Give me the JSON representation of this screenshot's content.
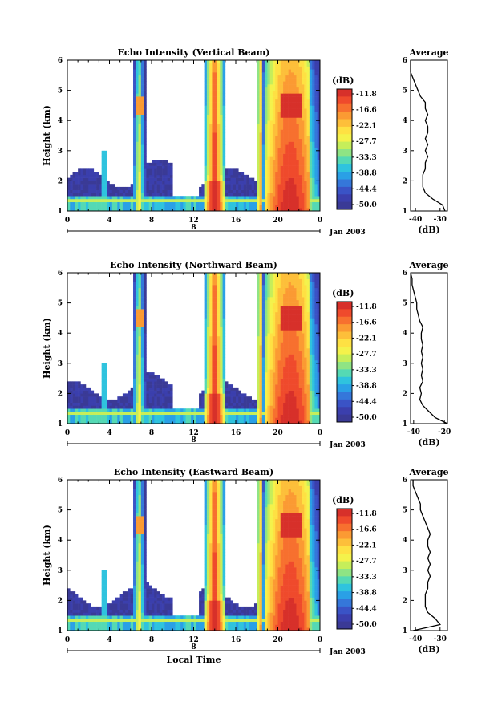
{
  "colorbar": {
    "unit_label": "(dB)",
    "ticks": [
      "-11.8",
      "-16.6",
      "-22.1",
      "-27.7",
      "-33.3",
      "-38.8",
      "-44.4",
      "-50.0"
    ],
    "colors": [
      "#d7302a",
      "#ef4a2c",
      "#f7702f",
      "#fb9a33",
      "#fdbf3a",
      "#fee143",
      "#f4f24b",
      "#c6ee5a",
      "#8fe484",
      "#55d9b4",
      "#2fc3de",
      "#2aa0e6",
      "#3577da",
      "#3a53c6",
      "#3b3fad",
      "#3a3a96"
    ]
  },
  "shared": {
    "date_label": "Jan 2003",
    "day_marker": "8",
    "x_ticks": [
      "0",
      "4",
      "8",
      "12",
      "16",
      "20",
      "0"
    ],
    "y_ticks": [
      "1",
      "2",
      "3",
      "4",
      "5",
      "6"
    ],
    "ylabel": "Height (km)",
    "xlabel": "Local Time",
    "avg_title": "Average",
    "avg_xlabel": "(dB)"
  },
  "chart_data": [
    {
      "type": "heatmap",
      "title": "Echo Intensity (Vertical Beam)",
      "x_range_hours": [
        0,
        24
      ],
      "y_range_km": [
        1,
        6
      ],
      "value_range_db": [
        -50.0,
        -11.8
      ],
      "average_profile": {
        "title": "Average",
        "x_ticks": [
          "-40",
          "-30"
        ],
        "xlim": [
          -42,
          -27
        ],
        "heights_km": [
          1.0,
          1.2,
          1.4,
          1.6,
          1.8,
          2.0,
          2.2,
          2.4,
          2.6,
          2.8,
          3.0,
          3.2,
          3.4,
          3.6,
          3.8,
          4.0,
          4.2,
          4.4,
          4.6,
          4.8,
          5.0,
          5.2,
          5.4,
          5.6,
          5.8,
          6.0
        ],
        "values_db": [
          -28,
          -29,
          -33,
          -36,
          -37,
          -37,
          -37,
          -36,
          -36,
          -35,
          -36,
          -35,
          -36,
          -35,
          -35,
          -36,
          -35,
          -36,
          -36,
          -38,
          -39,
          -40,
          -41,
          -42,
          -42,
          -42
        ]
      }
    },
    {
      "type": "heatmap",
      "title": "Echo Intensity (Northward Beam)",
      "x_range_hours": [
        0,
        24
      ],
      "y_range_km": [
        1,
        6
      ],
      "value_range_db": [
        -50.0,
        -11.8
      ],
      "average_profile": {
        "title": "Average",
        "x_ticks": [
          "-40",
          "-20"
        ],
        "xlim": [
          -42,
          -18
        ],
        "heights_km": [
          1.0,
          1.2,
          1.4,
          1.6,
          1.8,
          2.0,
          2.2,
          2.4,
          2.6,
          2.8,
          3.0,
          3.2,
          3.4,
          3.6,
          3.8,
          4.0,
          4.2,
          4.4,
          4.6,
          4.8,
          5.0,
          5.2,
          5.4,
          5.6,
          5.8,
          6.0
        ],
        "values_db": [
          -18,
          -26,
          -30,
          -34,
          -36,
          -35,
          -36,
          -34,
          -35,
          -34,
          -35,
          -34,
          -35,
          -34,
          -35,
          -35,
          -34,
          -36,
          -37,
          -38,
          -38,
          -39,
          -40,
          -41,
          -41,
          -42
        ]
      }
    },
    {
      "type": "heatmap",
      "title": "Echo Intensity (Eastward Beam)",
      "x_range_hours": [
        0,
        24
      ],
      "y_range_km": [
        1,
        6
      ],
      "value_range_db": [
        -50.0,
        -11.8
      ],
      "average_profile": {
        "title": "Average",
        "x_ticks": [
          "-40",
          "-30"
        ],
        "xlim": [
          -42,
          -27
        ],
        "heights_km": [
          1.0,
          1.2,
          1.4,
          1.6,
          1.8,
          2.0,
          2.2,
          2.4,
          2.6,
          2.8,
          3.0,
          3.2,
          3.4,
          3.6,
          3.8,
          4.0,
          4.2,
          4.4,
          4.6,
          4.8,
          5.0,
          5.2,
          5.4,
          5.6,
          5.8,
          6.0
        ],
        "values_db": [
          -41,
          -30,
          -32,
          -35,
          -36,
          -36,
          -36,
          -35,
          -35,
          -34,
          -35,
          -34,
          -35,
          -34,
          -35,
          -35,
          -34,
          -35,
          -36,
          -37,
          -38,
          -38,
          -39,
          -40,
          -41,
          -41
        ]
      }
    }
  ]
}
